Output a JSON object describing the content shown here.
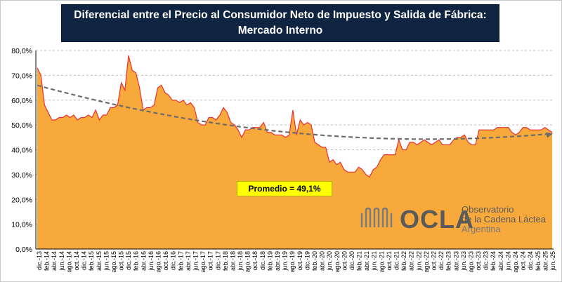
{
  "title": {
    "line1": "Diferencial entre el Precio al Consumidor Neto de Impuesto y Salida de Fábrica:",
    "line2": "Mercado Interno"
  },
  "average_label": "Promedio = 49,1%",
  "logo": {
    "word": "OCLA",
    "line1": "Observatorio",
    "line2": "de la Cadena Láctea",
    "line3": "Argentina"
  },
  "colors": {
    "area_fill": "#f7a93c",
    "area_line": "#e83030",
    "trend": "#6b6b6b",
    "title_bg": "#0f2440",
    "average_box": "#ffff00"
  },
  "chart_data": {
    "type": "area",
    "title": "Diferencial entre el Precio al Consumidor Neto de Impuesto y Salida de Fábrica: Mercado Interno",
    "xlabel": "",
    "ylabel": "",
    "ylim": [
      0,
      80
    ],
    "yticks": [
      "0,0%",
      "10,0%",
      "20,0%",
      "30,0%",
      "40,0%",
      "50,0%",
      "60,0%",
      "70,0%",
      "80,0%"
    ],
    "grid": true,
    "x_tick_labels": [
      "dic.-13",
      "feb.-14",
      "abr.-14",
      "jun.-14",
      "ago.-14",
      "oct.-14",
      "dic.-14",
      "feb.-15",
      "abr.-15",
      "jun.-15",
      "ago.-15",
      "oct.-15",
      "dic.-15",
      "feb.-16",
      "abr.-16",
      "jun.-16",
      "ago.-16",
      "oct.-16",
      "dic.-16",
      "feb.-17",
      "abr.-17",
      "jun.-17",
      "ago.-17",
      "oct.-17",
      "dic.-17",
      "feb.-18",
      "abr.-18",
      "jun.-18",
      "ago.-18",
      "oct.-18",
      "dic.-18",
      "feb.-19",
      "abr.-19",
      "jun.-19",
      "ago.-19",
      "oct.-19",
      "dic.-19",
      "feb.-20",
      "abr.-20",
      "jun.-20",
      "ago.-20",
      "oct.-20",
      "dic.-20",
      "feb.-21",
      "abr.-21",
      "jun.-21",
      "ago.-21",
      "oct.-21",
      "dic.-21",
      "feb.-22",
      "abr.-22",
      "jun.-22",
      "ago.-22",
      "oct.-22",
      "dic.-22",
      "feb.-23",
      "abr.-23",
      "jun.-23",
      "ago.-23",
      "oct.-23",
      "dic.-23",
      "feb.-24",
      "abr.-24",
      "jun.-24",
      "ago.-24",
      "oct.-24",
      "dic.-24",
      "feb.-25",
      "abr.-25",
      "jun.-25"
    ],
    "series": [
      {
        "values": [
          73,
          70,
          58,
          55,
          52,
          52,
          53,
          53,
          54,
          53,
          54,
          52,
          53,
          53,
          54,
          53,
          56,
          52,
          54,
          54,
          57,
          57,
          58,
          67,
          64,
          78,
          72,
          71,
          65,
          56,
          57,
          57,
          58,
          65,
          66,
          63,
          62,
          60,
          60,
          59,
          60,
          58,
          59,
          57,
          51,
          50,
          50,
          53,
          53,
          52,
          54,
          57,
          55,
          51,
          50,
          48,
          45,
          48,
          48,
          49,
          49,
          49,
          51,
          47,
          47,
          46,
          46,
          46,
          45,
          46,
          56,
          46,
          52,
          50,
          51,
          50,
          43,
          42,
          41,
          41,
          35,
          36,
          34,
          35,
          32,
          31,
          31,
          31,
          33,
          32,
          30,
          29,
          32,
          33,
          36,
          38,
          38,
          38,
          38,
          44,
          40,
          40,
          43,
          43,
          42,
          43,
          44,
          43,
          42,
          43,
          44,
          42,
          42,
          42,
          44,
          45,
          45,
          46,
          43,
          42,
          42,
          48,
          48,
          48,
          48,
          48,
          49,
          49,
          49,
          49,
          47,
          46,
          47,
          49,
          49,
          48,
          48,
          48,
          48,
          49,
          48,
          47
        ]
      }
    ],
    "trend": {
      "type": "polynomial",
      "values": [
        66,
        45,
        46.5
      ]
    }
  }
}
